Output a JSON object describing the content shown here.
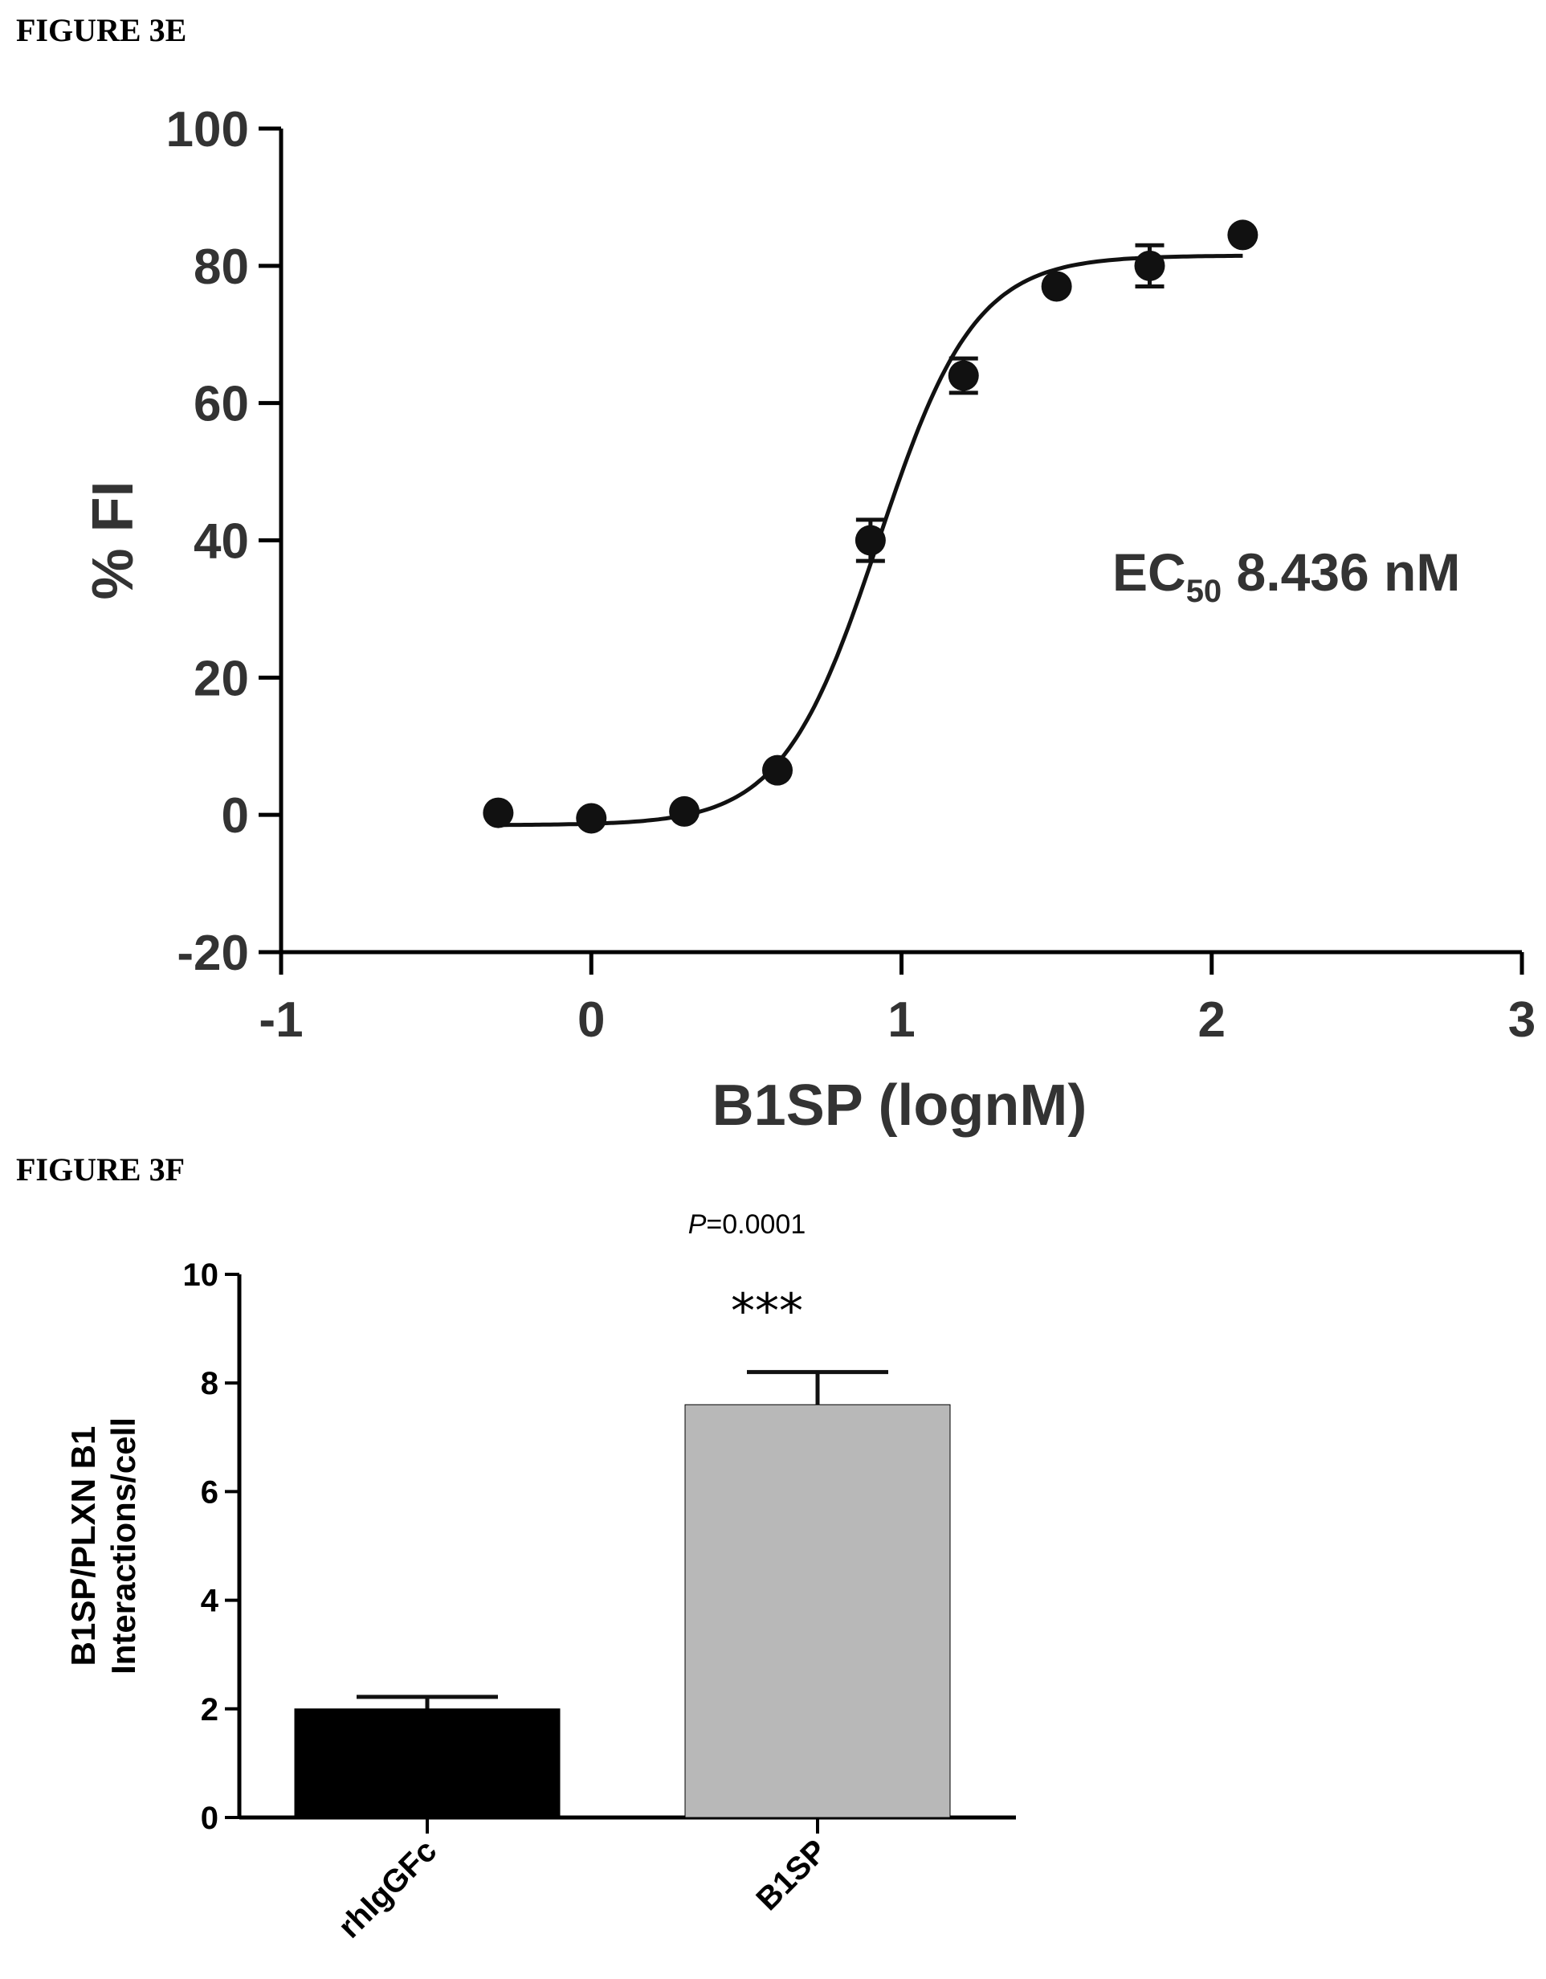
{
  "figures": {
    "e_label": "FIGURE 3E",
    "f_label": "FIGURE 3F"
  },
  "chart_data": [
    {
      "type": "scatter",
      "xlabel": "B1SP (lognM)",
      "ylabel": "% FI",
      "xlim": [
        -1,
        3
      ],
      "ylim": [
        -20,
        100
      ],
      "x_ticks": [
        -1,
        0,
        1,
        2,
        3
      ],
      "y_ticks": [
        -20,
        0,
        20,
        40,
        60,
        80,
        100
      ],
      "annotation": {
        "main": "EC",
        "sub": "50",
        "rest": " 8.436 nM"
      },
      "points": [
        {
          "x": -0.3,
          "y": 0.3,
          "err": 1.0
        },
        {
          "x": 0.0,
          "y": -0.5,
          "err": 1.0
        },
        {
          "x": 0.3,
          "y": 0.5,
          "err": 1.0
        },
        {
          "x": 0.6,
          "y": 6.5,
          "err": 1.0
        },
        {
          "x": 0.9,
          "y": 40.0,
          "err": 3.0
        },
        {
          "x": 1.2,
          "y": 64.0,
          "err": 2.5
        },
        {
          "x": 1.5,
          "y": 77.0,
          "err": 1.0
        },
        {
          "x": 1.8,
          "y": 80.0,
          "err": 3.0
        },
        {
          "x": 2.1,
          "y": 84.5,
          "err": 1.0
        }
      ],
      "fit": {
        "bottom": -1.5,
        "top": 81.5,
        "logEC50": 0.926,
        "hill": 2.8
      },
      "grid": false,
      "legend": "none"
    },
    {
      "type": "bar",
      "categories": [
        "rhIgGFc",
        "B1SP"
      ],
      "values": [
        2.0,
        7.6
      ],
      "errors": [
        0.22,
        0.6
      ],
      "colors": [
        "#000000",
        "#b8b8b8"
      ],
      "ylabel_lines": [
        "B1SP/PLXN B1",
        "Interactions/cell"
      ],
      "ylim": [
        0,
        10
      ],
      "y_ticks": [
        0,
        2,
        4,
        6,
        8,
        10
      ],
      "annotation_prefix": "P",
      "annotation_value": "=0.0001",
      "significance": "***",
      "grid": false
    }
  ]
}
